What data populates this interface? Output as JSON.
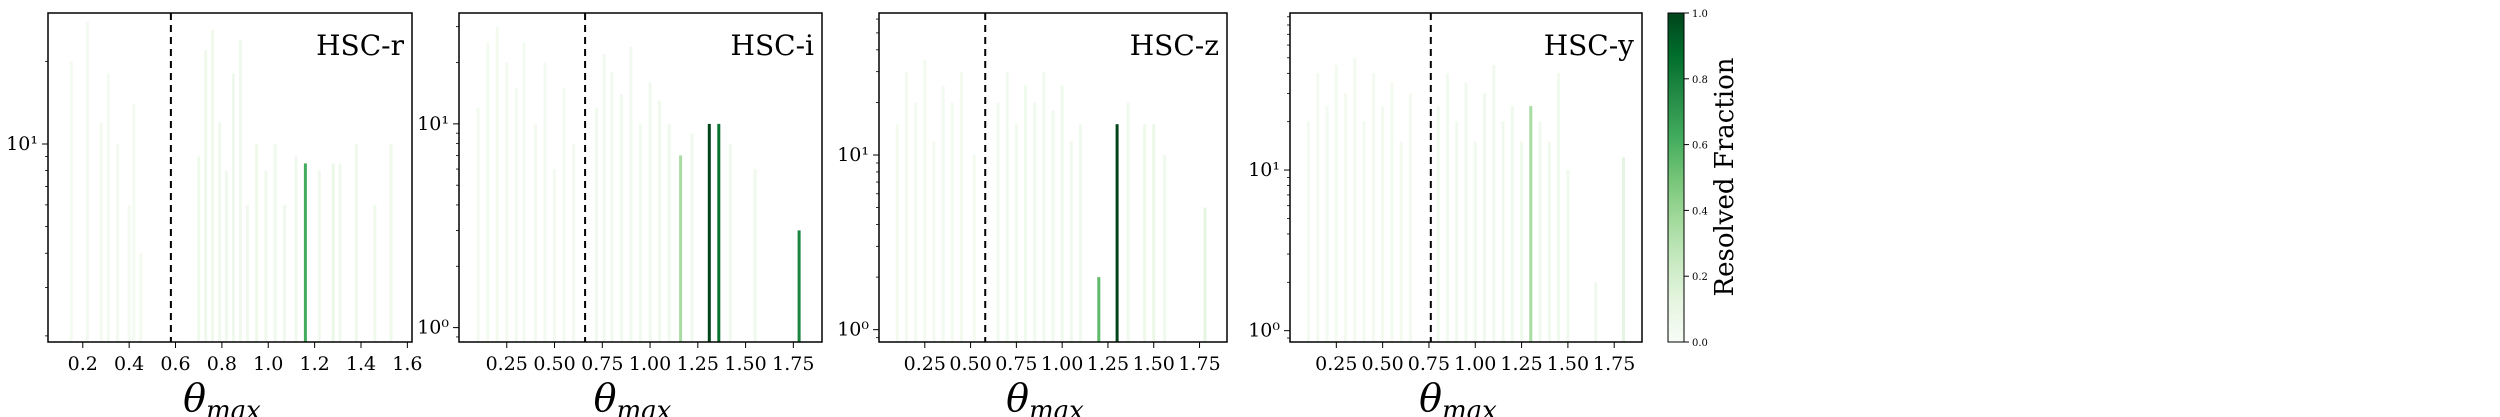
{
  "chart_data": {
    "type": "histogram",
    "panels": [
      {
        "id": "r",
        "title": "HSC-r",
        "xlabel": "θ",
        "xlabel_sub": "max",
        "xlim": [
          0.05,
          1.62
        ],
        "xticks": [
          0.2,
          0.4,
          0.6,
          0.8,
          1.0,
          1.2,
          1.4,
          1.6
        ],
        "xtick_labels": [
          "0.2",
          "0.4",
          "0.6",
          "0.8",
          "1.0",
          "1.2",
          "1.4",
          "1.6"
        ],
        "yscale": "log",
        "ylim": [
          1.9,
          30
        ],
        "yticks": [
          10
        ],
        "ytick_labels": [
          "10¹"
        ],
        "threshold": 0.58,
        "bars": [
          {
            "x": 0.15,
            "h": 20,
            "f": 0.03
          },
          {
            "x": 0.22,
            "h": 28,
            "f": 0.03
          },
          {
            "x": 0.28,
            "h": 12,
            "f": 0.03
          },
          {
            "x": 0.31,
            "h": 18,
            "f": 0.03
          },
          {
            "x": 0.35,
            "h": 10,
            "f": 0.03
          },
          {
            "x": 0.4,
            "h": 6,
            "f": 0.03
          },
          {
            "x": 0.42,
            "h": 14,
            "f": 0.03
          },
          {
            "x": 0.45,
            "h": 4,
            "f": 0.03
          },
          {
            "x": 0.7,
            "h": 9,
            "f": 0.05
          },
          {
            "x": 0.73,
            "h": 22,
            "f": 0.06
          },
          {
            "x": 0.76,
            "h": 26,
            "f": 0.06
          },
          {
            "x": 0.79,
            "h": 12,
            "f": 0.05
          },
          {
            "x": 0.82,
            "h": 8,
            "f": 0.05
          },
          {
            "x": 0.85,
            "h": 18,
            "f": 0.05
          },
          {
            "x": 0.88,
            "h": 24,
            "f": 0.05
          },
          {
            "x": 0.91,
            "h": 6,
            "f": 0.05
          },
          {
            "x": 0.95,
            "h": 10,
            "f": 0.06
          },
          {
            "x": 0.99,
            "h": 8,
            "f": 0.05
          },
          {
            "x": 1.03,
            "h": 10,
            "f": 0.05
          },
          {
            "x": 1.07,
            "h": 6,
            "f": 0.05
          },
          {
            "x": 1.12,
            "h": 9,
            "f": 0.05
          },
          {
            "x": 1.16,
            "h": 8.5,
            "f": 0.62
          },
          {
            "x": 1.22,
            "h": 8,
            "f": 0.05
          },
          {
            "x": 1.28,
            "h": 8.5,
            "f": 0.08
          },
          {
            "x": 1.31,
            "h": 8.5,
            "f": 0.05
          },
          {
            "x": 1.38,
            "h": 10,
            "f": 0.06
          },
          {
            "x": 1.46,
            "h": 6,
            "f": 0.05
          },
          {
            "x": 1.53,
            "h": 10,
            "f": 0.06
          }
        ]
      },
      {
        "id": "i",
        "title": "HSC-i",
        "xlabel": "θ",
        "xlabel_sub": "max",
        "xlim": [
          0.0,
          1.9
        ],
        "xticks": [
          0.25,
          0.5,
          0.75,
          1.0,
          1.25,
          1.5,
          1.75
        ],
        "xtick_labels": [
          "0.25",
          "0.50",
          "0.75",
          "1.00",
          "1.25",
          "1.50",
          "1.75"
        ],
        "yscale": "log",
        "ylim": [
          0.85,
          35
        ],
        "yticks": [
          1,
          10
        ],
        "ytick_labels": [
          "10⁰",
          "10¹"
        ],
        "threshold": 0.66,
        "bars": [
          {
            "x": 0.1,
            "h": 12,
            "f": 0.03
          },
          {
            "x": 0.15,
            "h": 25,
            "f": 0.03
          },
          {
            "x": 0.2,
            "h": 30,
            "f": 0.03
          },
          {
            "x": 0.25,
            "h": 20,
            "f": 0.03
          },
          {
            "x": 0.3,
            "h": 15,
            "f": 0.03
          },
          {
            "x": 0.34,
            "h": 25,
            "f": 0.03
          },
          {
            "x": 0.4,
            "h": 10,
            "f": 0.03
          },
          {
            "x": 0.45,
            "h": 20,
            "f": 0.03
          },
          {
            "x": 0.5,
            "h": 6,
            "f": 0.03
          },
          {
            "x": 0.55,
            "h": 15,
            "f": 0.03
          },
          {
            "x": 0.6,
            "h": 8,
            "f": 0.03
          },
          {
            "x": 0.72,
            "h": 12,
            "f": 0.04
          },
          {
            "x": 0.76,
            "h": 22,
            "f": 0.04
          },
          {
            "x": 0.8,
            "h": 18,
            "f": 0.04
          },
          {
            "x": 0.85,
            "h": 14,
            "f": 0.04
          },
          {
            "x": 0.9,
            "h": 24,
            "f": 0.04
          },
          {
            "x": 0.95,
            "h": 10,
            "f": 0.04
          },
          {
            "x": 1.0,
            "h": 16,
            "f": 0.05
          },
          {
            "x": 1.05,
            "h": 13,
            "f": 0.05
          },
          {
            "x": 1.1,
            "h": 10,
            "f": 0.05
          },
          {
            "x": 1.16,
            "h": 7,
            "f": 0.35
          },
          {
            "x": 1.22,
            "h": 9,
            "f": 0.05
          },
          {
            "x": 1.31,
            "h": 10,
            "f": 1.0
          },
          {
            "x": 1.36,
            "h": 10,
            "f": 0.85
          },
          {
            "x": 1.42,
            "h": 8,
            "f": 0.05
          },
          {
            "x": 1.55,
            "h": 6,
            "f": 0.05
          },
          {
            "x": 1.78,
            "h": 3,
            "f": 0.78
          }
        ]
      },
      {
        "id": "z",
        "title": "HSC-z",
        "xlabel": "θ",
        "xlabel_sub": "max",
        "xlim": [
          0.0,
          1.9
        ],
        "xticks": [
          0.25,
          0.5,
          0.75,
          1.0,
          1.25,
          1.5,
          1.75
        ],
        "xtick_labels": [
          "0.25",
          "0.50",
          "0.75",
          "1.00",
          "1.25",
          "1.50",
          "1.75"
        ],
        "yscale": "log",
        "ylim": [
          0.85,
          65
        ],
        "yticks": [
          1,
          10
        ],
        "ytick_labels": [
          "10⁰",
          "10¹"
        ],
        "threshold": 0.58,
        "bars": [
          {
            "x": 0.1,
            "h": 15,
            "f": 0.03
          },
          {
            "x": 0.15,
            "h": 30,
            "f": 0.03
          },
          {
            "x": 0.2,
            "h": 20,
            "f": 0.03
          },
          {
            "x": 0.25,
            "h": 35,
            "f": 0.03
          },
          {
            "x": 0.3,
            "h": 12,
            "f": 0.03
          },
          {
            "x": 0.35,
            "h": 25,
            "f": 0.03
          },
          {
            "x": 0.4,
            "h": 20,
            "f": 0.03
          },
          {
            "x": 0.45,
            "h": 30,
            "f": 0.03
          },
          {
            "x": 0.52,
            "h": 10,
            "f": 0.03
          },
          {
            "x": 0.65,
            "h": 20,
            "f": 0.04
          },
          {
            "x": 0.7,
            "h": 30,
            "f": 0.04
          },
          {
            "x": 0.75,
            "h": 15,
            "f": 0.04
          },
          {
            "x": 0.8,
            "h": 25,
            "f": 0.04
          },
          {
            "x": 0.85,
            "h": 20,
            "f": 0.04
          },
          {
            "x": 0.9,
            "h": 30,
            "f": 0.04
          },
          {
            "x": 0.95,
            "h": 18,
            "f": 0.04
          },
          {
            "x": 1.0,
            "h": 25,
            "f": 0.05
          },
          {
            "x": 1.05,
            "h": 12,
            "f": 0.05
          },
          {
            "x": 1.1,
            "h": 15,
            "f": 0.05
          },
          {
            "x": 1.2,
            "h": 2,
            "f": 0.55
          },
          {
            "x": 1.3,
            "h": 15,
            "f": 1.0
          },
          {
            "x": 1.36,
            "h": 20,
            "f": 0.05
          },
          {
            "x": 1.45,
            "h": 15,
            "f": 0.06
          },
          {
            "x": 1.5,
            "h": 15,
            "f": 0.08
          },
          {
            "x": 1.56,
            "h": 10,
            "f": 0.05
          },
          {
            "x": 1.78,
            "h": 5,
            "f": 0.12
          }
        ]
      },
      {
        "id": "y",
        "title": "HSC-y",
        "xlabel": "θ",
        "xlabel_sub": "max",
        "xlim": [
          0.0,
          1.9
        ],
        "xticks": [
          0.25,
          0.5,
          0.75,
          1.0,
          1.25,
          1.5,
          1.75
        ],
        "xtick_labels": [
          "0.25",
          "0.50",
          "0.75",
          "1.00",
          "1.25",
          "1.50",
          "1.75"
        ],
        "yscale": "log",
        "ylim": [
          0.85,
          95
        ],
        "yticks": [
          1,
          10
        ],
        "ytick_labels": [
          "10⁰",
          "10¹"
        ],
        "threshold": 0.76,
        "bars": [
          {
            "x": 0.1,
            "h": 20,
            "f": 0.03
          },
          {
            "x": 0.15,
            "h": 40,
            "f": 0.03
          },
          {
            "x": 0.2,
            "h": 25,
            "f": 0.03
          },
          {
            "x": 0.25,
            "h": 45,
            "f": 0.03
          },
          {
            "x": 0.3,
            "h": 30,
            "f": 0.03
          },
          {
            "x": 0.35,
            "h": 50,
            "f": 0.03
          },
          {
            "x": 0.4,
            "h": 20,
            "f": 0.03
          },
          {
            "x": 0.45,
            "h": 40,
            "f": 0.03
          },
          {
            "x": 0.5,
            "h": 25,
            "f": 0.03
          },
          {
            "x": 0.55,
            "h": 35,
            "f": 0.03
          },
          {
            "x": 0.6,
            "h": 15,
            "f": 0.03
          },
          {
            "x": 0.65,
            "h": 30,
            "f": 0.03
          },
          {
            "x": 0.8,
            "h": 25,
            "f": 0.04
          },
          {
            "x": 0.85,
            "h": 40,
            "f": 0.04
          },
          {
            "x": 0.9,
            "h": 20,
            "f": 0.04
          },
          {
            "x": 0.95,
            "h": 35,
            "f": 0.04
          },
          {
            "x": 1.0,
            "h": 15,
            "f": 0.04
          },
          {
            "x": 1.05,
            "h": 30,
            "f": 0.05
          },
          {
            "x": 1.1,
            "h": 45,
            "f": 0.05
          },
          {
            "x": 1.15,
            "h": 20,
            "f": 0.05
          },
          {
            "x": 1.2,
            "h": 25,
            "f": 0.05
          },
          {
            "x": 1.25,
            "h": 15,
            "f": 0.05
          },
          {
            "x": 1.3,
            "h": 25,
            "f": 0.35
          },
          {
            "x": 1.35,
            "h": 20,
            "f": 0.05
          },
          {
            "x": 1.4,
            "h": 15,
            "f": 0.05
          },
          {
            "x": 1.45,
            "h": 40,
            "f": 0.05
          },
          {
            "x": 1.5,
            "h": 10,
            "f": 0.05
          },
          {
            "x": 1.65,
            "h": 2,
            "f": 0.05
          },
          {
            "x": 1.8,
            "h": 12,
            "f": 0.12
          }
        ]
      }
    ],
    "colorbar": {
      "label": "Resolved Fraction",
      "range": [
        0.0,
        1.0
      ],
      "ticks": [
        0.0,
        0.2,
        0.4,
        0.6,
        0.8,
        1.0
      ],
      "tick_labels": [
        "0.0",
        "0.2",
        "0.4",
        "0.6",
        "0.8",
        "1.0"
      ],
      "color_low": "#f7fcf5",
      "color_high": "#00441b"
    }
  }
}
